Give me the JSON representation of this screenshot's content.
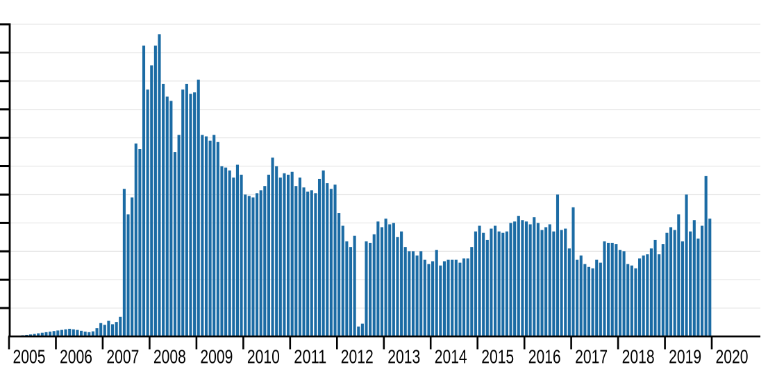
{
  "page": {
    "background": "#ffffff"
  },
  "chart_data": {
    "type": "bar",
    "title": "",
    "xlabel": "",
    "ylabel": "",
    "x_unit": "month",
    "x_start": "2005-01",
    "x_end": "2019-12",
    "x_tick_labels": [
      "2005",
      "2006",
      "2007",
      "2008",
      "2009",
      "2010",
      "2011",
      "2012",
      "2013",
      "2014",
      "2015",
      "2016",
      "2017",
      "2018",
      "2019",
      "2020"
    ],
    "y_axis": {
      "min": 0,
      "max": 110,
      "gridline_interval": 10,
      "tick_count": 11,
      "tick_labels_visible": false
    },
    "grid": true,
    "legend": "none",
    "colors": {
      "bar": "#1b6ba4",
      "grid": "#e8e8e8",
      "axis": "#000000",
      "label": "#000000",
      "background": "#ffffff"
    },
    "series": [
      {
        "name": "monthly-values",
        "values": [
          0,
          0,
          0,
          0.4,
          0.5,
          0.7,
          0.9,
          1.1,
          1.3,
          1.5,
          1.7,
          1.9,
          2.1,
          2.3,
          2.5,
          2.7,
          2.5,
          2.3,
          2,
          1.7,
          1.5,
          1.8,
          2.9,
          4.7,
          4.1,
          5.5,
          4.3,
          5.1,
          6.9,
          52,
          43,
          49,
          68,
          66,
          102.5,
          87,
          95.5,
          102.5,
          106.5,
          89,
          84.5,
          83,
          65,
          71,
          87,
          89,
          85.5,
          86,
          90.5,
          71,
          70.5,
          69,
          71,
          68.5,
          60,
          59.5,
          58.5,
          56,
          60.5,
          57,
          50,
          49.5,
          49,
          50.5,
          51.5,
          53,
          57,
          63,
          60,
          56,
          57.5,
          57,
          58,
          53,
          56,
          52.5,
          51,
          51.5,
          50.5,
          55.5,
          58.5,
          54,
          52,
          53.5,
          43.5,
          39,
          33.5,
          31.5,
          35.5,
          3.5,
          4.5,
          33.5,
          33,
          36,
          40.5,
          38.5,
          41.5,
          39.5,
          40,
          35,
          37,
          31.5,
          30,
          30,
          28.5,
          30,
          27,
          25.5,
          26.5,
          30.5,
          25,
          26.5,
          27,
          27,
          27,
          26,
          27.5,
          27.5,
          31.5,
          37,
          39,
          36.5,
          34,
          38,
          39,
          37,
          36.5,
          37,
          40,
          40.5,
          42.5,
          41,
          40.5,
          39.5,
          42,
          40,
          37.5,
          38.5,
          39.5,
          37,
          50,
          37.5,
          38,
          31,
          45.5,
          27,
          28.5,
          25.5,
          24.5,
          24,
          27,
          26,
          33.5,
          33,
          33,
          32.5,
          30.5,
          30,
          25.5,
          25,
          24,
          27.5,
          28.5,
          29,
          31,
          34,
          29,
          32.5,
          36.5,
          38.5,
          37.5,
          43,
          33.5,
          50,
          37,
          41,
          34.5,
          39,
          56.5,
          41.5
        ]
      }
    ]
  }
}
